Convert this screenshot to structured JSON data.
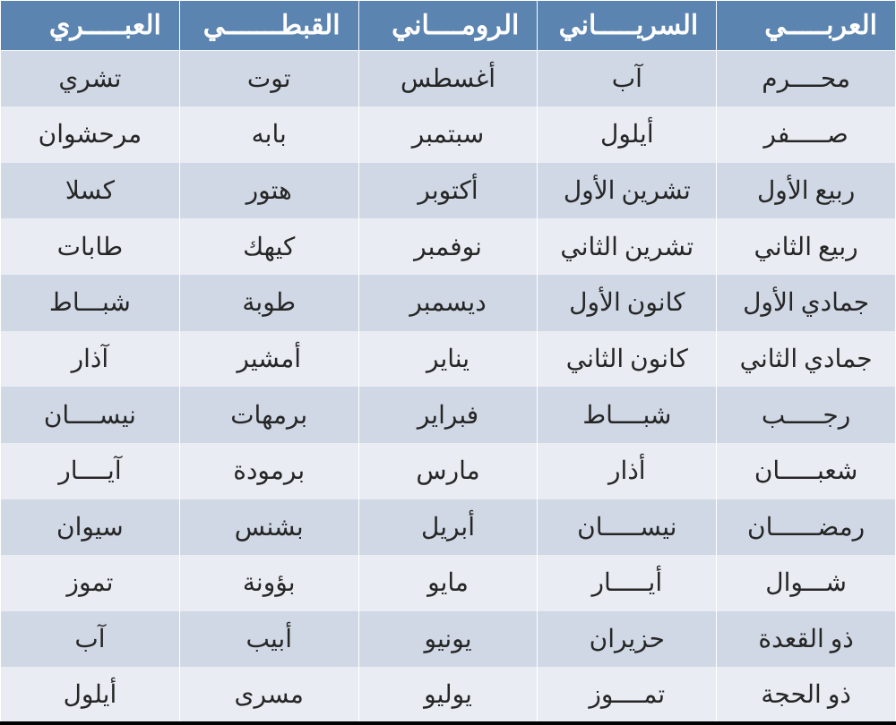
{
  "table": {
    "type": "table",
    "direction": "rtl",
    "header_bg": "#5b84b1",
    "header_fg": "#ffffff",
    "row_bg_odd": "#d0d8e5",
    "row_bg_even": "#e9edf3",
    "cell_fg": "#262626",
    "border_color": "#ffffff",
    "bottom_border_color": "#000000",
    "header_fontsize": 30,
    "cell_fontsize": 28,
    "columns": [
      "العربـــــي",
      "السريـــــاني",
      "الرومــــاني",
      "القبطـــــــي",
      "العبـــــري"
    ],
    "rows": [
      [
        "محــــرم",
        "آب",
        "أغسطس",
        "توت",
        "تشري"
      ],
      [
        "صـــــفر",
        "أيلول",
        "سبتمبر",
        "بابه",
        "مرحشوان"
      ],
      [
        "ربيع الأول",
        "تشرين الأول",
        "أكتوبر",
        "هتور",
        "كسلا"
      ],
      [
        "ربيع الثاني",
        "تشرين الثاني",
        "نوفمبر",
        "كيهك",
        "طابات"
      ],
      [
        "جمادي الأول",
        "كانون الأول",
        "ديسمبر",
        "طوبة",
        "شبـــاط"
      ],
      [
        "جمادي الثاني",
        "كانون الثاني",
        "يناير",
        "أمشير",
        "آذار"
      ],
      [
        "رجـــــب",
        "شبــــاط",
        "فبراير",
        "برمهات",
        "نيســــان"
      ],
      [
        "شعبـــــان",
        "أذار",
        "مارس",
        "برمودة",
        "آيــــار"
      ],
      [
        "رمضــــــان",
        "نيســـــان",
        "أبريل",
        "بشنس",
        "سيوان"
      ],
      [
        "شـــوال",
        "أيـــــار",
        "مايو",
        "بؤونة",
        "تموز"
      ],
      [
        "ذو القعدة",
        "حزيران",
        "يونيو",
        "أبيب",
        "آب"
      ],
      [
        "ذو الحجة",
        "تمــــوز",
        "يوليو",
        "مسرى",
        "أيلول"
      ]
    ]
  }
}
